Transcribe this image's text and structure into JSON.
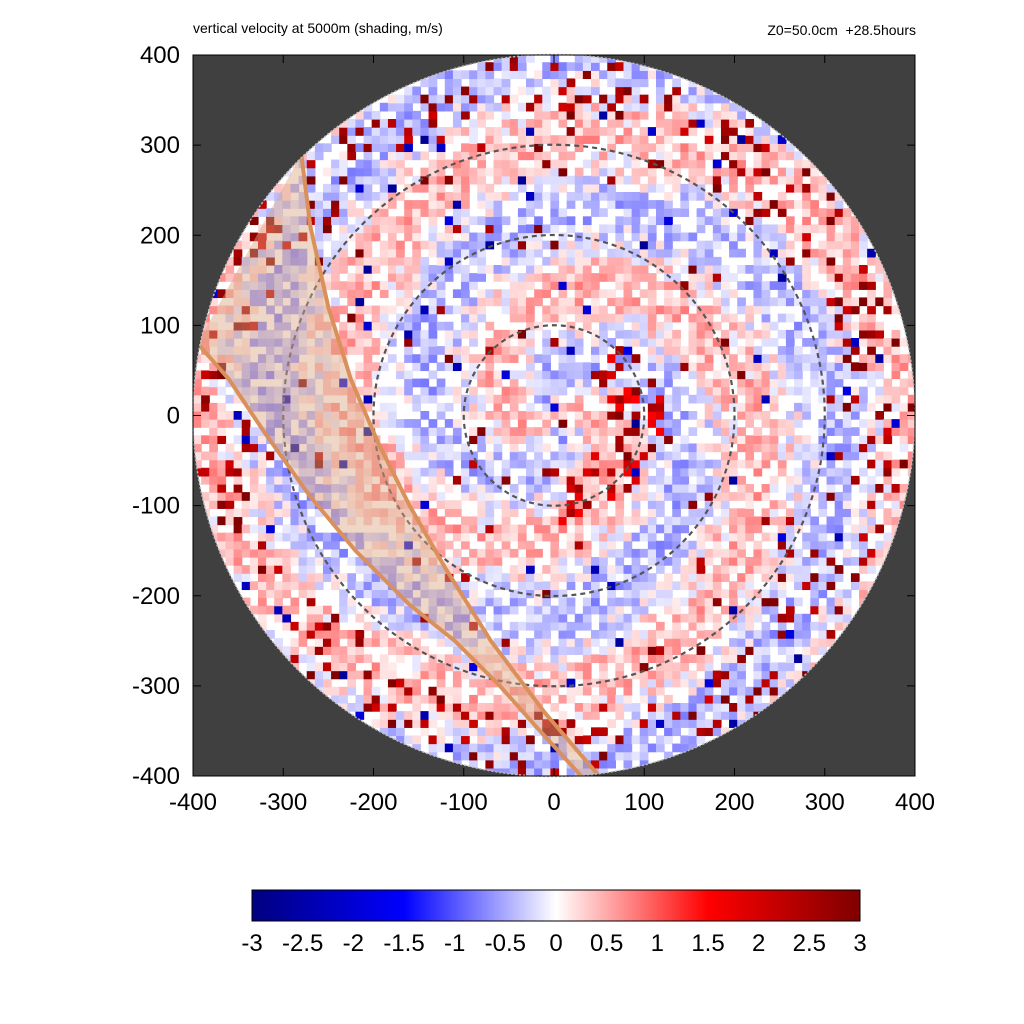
{
  "header": {
    "title": "vertical velocity at 5000m (shading, m/s)",
    "right_info": "Z0=50.0cm  +28.5hours"
  },
  "chart_data": {
    "type": "heatmap",
    "title": "vertical velocity at 5000m (shading, m/s)",
    "annotation": "Z0=50.0cm  +28.5hours",
    "xlabel": "",
    "ylabel": "",
    "xlim": [
      -400,
      400
    ],
    "ylim": [
      -400,
      400
    ],
    "x_ticks": [
      -400,
      -300,
      -200,
      -100,
      0,
      100,
      200,
      300,
      400
    ],
    "y_ticks": [
      -400,
      -300,
      -200,
      -100,
      0,
      100,
      200,
      300,
      400
    ],
    "domain_radius": 400,
    "reference_circles_radii": [
      100,
      200,
      300
    ],
    "swath": {
      "upper_edge": [
        [
          -280,
          290
        ],
        [
          -270,
          210
        ],
        [
          -250,
          120
        ],
        [
          -225,
          40
        ],
        [
          -195,
          -30
        ],
        [
          -160,
          -100
        ],
        [
          -120,
          -170
        ],
        [
          -70,
          -250
        ],
        [
          -10,
          -330
        ],
        [
          50,
          -400
        ]
      ],
      "lower_edge": [
        [
          -395,
          80
        ],
        [
          -360,
          40
        ],
        [
          -320,
          -20
        ],
        [
          -270,
          -90
        ],
        [
          -220,
          -150
        ],
        [
          -160,
          -210
        ],
        [
          -110,
          -250
        ],
        [
          -60,
          -300
        ],
        [
          -20,
          -345
        ],
        [
          30,
          -400
        ]
      ]
    },
    "colorbar": {
      "min": -3,
      "max": 3,
      "ticks": [
        "-3",
        "-2.5",
        "-2",
        "-1.5",
        "-1",
        "-0.5",
        "0",
        "0.5",
        "1",
        "1.5",
        "2",
        "2.5",
        "3"
      ],
      "colors": [
        "#00007f",
        "#0000ff",
        "#ffffff",
        "#ff0000",
        "#7f0000"
      ]
    },
    "colors": {
      "outside_domain": "#404040",
      "swath_fill": "#d9a680",
      "swath_edge": "#d9905a",
      "circle_stroke": "#555555"
    }
  }
}
